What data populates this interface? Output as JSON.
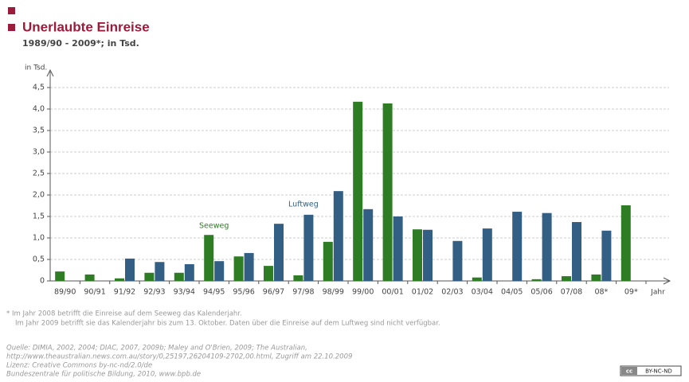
{
  "chart_data": {
    "type": "bar",
    "title": "Unerlaubte Einreise",
    "subtitle": "1989/90 - 2009*; in Tsd.",
    "y_label": "in Tsd.",
    "x_label": "Jahr",
    "categories": [
      "89/90",
      "90/91",
      "91/92",
      "92/93",
      "93/94",
      "94/95",
      "95/96",
      "96/97",
      "97/98",
      "98/99",
      "99/00",
      "00/01",
      "01/02",
      "02/03",
      "03/04",
      "04/05",
      "05/06",
      "07/08",
      "08*",
      "09*"
    ],
    "series": [
      {
        "name": "Seeweg",
        "color": "#2e7d25",
        "values": [
          0.22,
          0.15,
          0.06,
          0.19,
          0.19,
          1.07,
          0.57,
          0.35,
          0.13,
          0.91,
          4.17,
          4.13,
          1.2,
          0,
          0.08,
          0,
          0.04,
          0.11,
          0.15,
          1.76
        ]
      },
      {
        "name": "Luftweg",
        "color": "#335f85",
        "values": [
          0,
          0,
          0.52,
          0.44,
          0.39,
          0.46,
          0.65,
          1.33,
          1.54,
          2.09,
          1.67,
          1.5,
          1.19,
          0.93,
          1.22,
          1.61,
          1.58,
          1.37,
          1.17,
          null
        ]
      }
    ],
    "ylim": [
      0,
      4.5
    ],
    "yticks": [
      0,
      {
        "value": 0.5,
        "label": "0,5"
      },
      {
        "value": 1,
        "label": "1,0"
      },
      {
        "value": 1.5,
        "label": "1,5"
      },
      {
        "value": 2,
        "label": "2,0"
      },
      {
        "value": 2.5,
        "label": "2,5"
      },
      {
        "value": 3,
        "label": "3,0"
      },
      {
        "value": 3.5,
        "label": "3,5"
      },
      {
        "value": 4,
        "label": "4,0"
      },
      {
        "value": 4.5,
        "label": "4,5"
      }
    ],
    "grid": true,
    "footnote": [
      "* Im Jahr 2008 betrifft die Einreise auf dem Seeweg das Kalenderjahr.",
      "Im Jahr 2009 betrifft sie das Kalenderjahr bis zum 13. Oktober. Daten über die Einreise auf dem Luftweg sind nicht verfügbar."
    ],
    "source": [
      "Quelle: DIMIA, 2002, 2004; DIAC, 2007, 2009b; Maley and O'Brien, 2009; The Australian,",
      "http://www.theaustralian.news.com.au/story/0,25197,26204109-2702,00.html, Zugriff am 22.10.2009",
      "Lizenz: Creative Commons by-nc-nd/2.0/de",
      "Bundeszentrale für politische Bildung, 2010, www.bpb.de"
    ],
    "license_badge": "BY-NC-ND"
  }
}
